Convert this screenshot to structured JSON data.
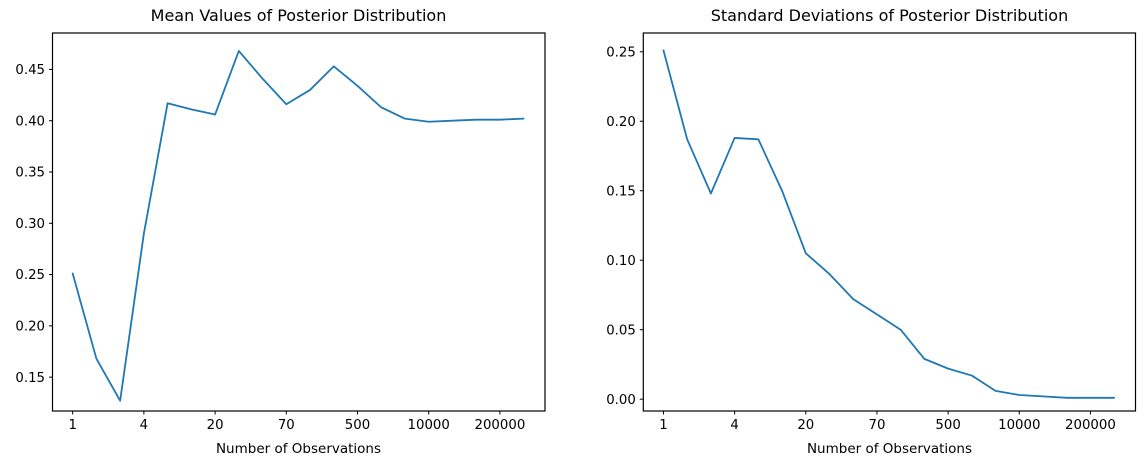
{
  "figure": {
    "background_color": "#ffffff",
    "text_color": "#000000",
    "spine_color": "#000000"
  },
  "chart_data": [
    {
      "type": "line",
      "title": "Mean Values of Posterior Distribution",
      "xlabel": "Number of Observations",
      "ylabel": "",
      "line_color": "#1f77b4",
      "legend": "none",
      "grid": false,
      "x_axis_type": "index",
      "x_index": [
        0,
        1,
        2,
        3,
        4,
        5,
        6,
        7,
        8,
        9,
        10,
        11,
        12,
        13,
        14,
        15,
        16,
        17,
        18,
        19
      ],
      "values": [
        0.251,
        0.168,
        0.127,
        0.29,
        0.417,
        0.411,
        0.406,
        0.468,
        0.441,
        0.416,
        0.43,
        0.453,
        0.434,
        0.413,
        0.402,
        0.399,
        0.4,
        0.401,
        0.401,
        0.402
      ],
      "x_tick_indices": [
        0,
        3,
        6,
        9,
        12,
        15,
        18
      ],
      "x_tick_labels": [
        "1",
        "4",
        "20",
        "70",
        "500",
        "10000",
        "200000"
      ],
      "y_tick_values": [
        0.15,
        0.2,
        0.25,
        0.3,
        0.35,
        0.4,
        0.45
      ],
      "y_tick_labels": [
        "0.15",
        "0.20",
        "0.25",
        "0.30",
        "0.35",
        "0.40",
        "0.45"
      ],
      "xlim": [
        -0.85,
        19.9
      ],
      "ylim": [
        0.117,
        0.4855
      ]
    },
    {
      "type": "line",
      "title": "Standard Deviations of Posterior Distribution",
      "xlabel": "Number of Observations",
      "ylabel": "",
      "line_color": "#1f77b4",
      "legend": "none",
      "grid": false,
      "x_axis_type": "index",
      "x_index": [
        0,
        1,
        2,
        3,
        4,
        5,
        6,
        7,
        8,
        9,
        10,
        11,
        12,
        13,
        14,
        15,
        16,
        17,
        18,
        19
      ],
      "values": [
        0.251,
        0.187,
        0.148,
        0.188,
        0.187,
        0.15,
        0.105,
        0.09,
        0.072,
        0.061,
        0.05,
        0.029,
        0.022,
        0.017,
        0.006,
        0.003,
        0.002,
        0.001,
        0.001,
        0.001
      ],
      "x_tick_indices": [
        0,
        3,
        6,
        9,
        12,
        15,
        18
      ],
      "x_tick_labels": [
        "1",
        "4",
        "20",
        "70",
        "500",
        "10000",
        "200000"
      ],
      "y_tick_values": [
        0.0,
        0.05,
        0.1,
        0.15,
        0.2,
        0.25
      ],
      "y_tick_labels": [
        "0.00",
        "0.05",
        "0.10",
        "0.15",
        "0.20",
        "0.25"
      ],
      "xlim": [
        -0.85,
        19.9
      ],
      "ylim": [
        -0.0085,
        0.2635
      ]
    }
  ]
}
